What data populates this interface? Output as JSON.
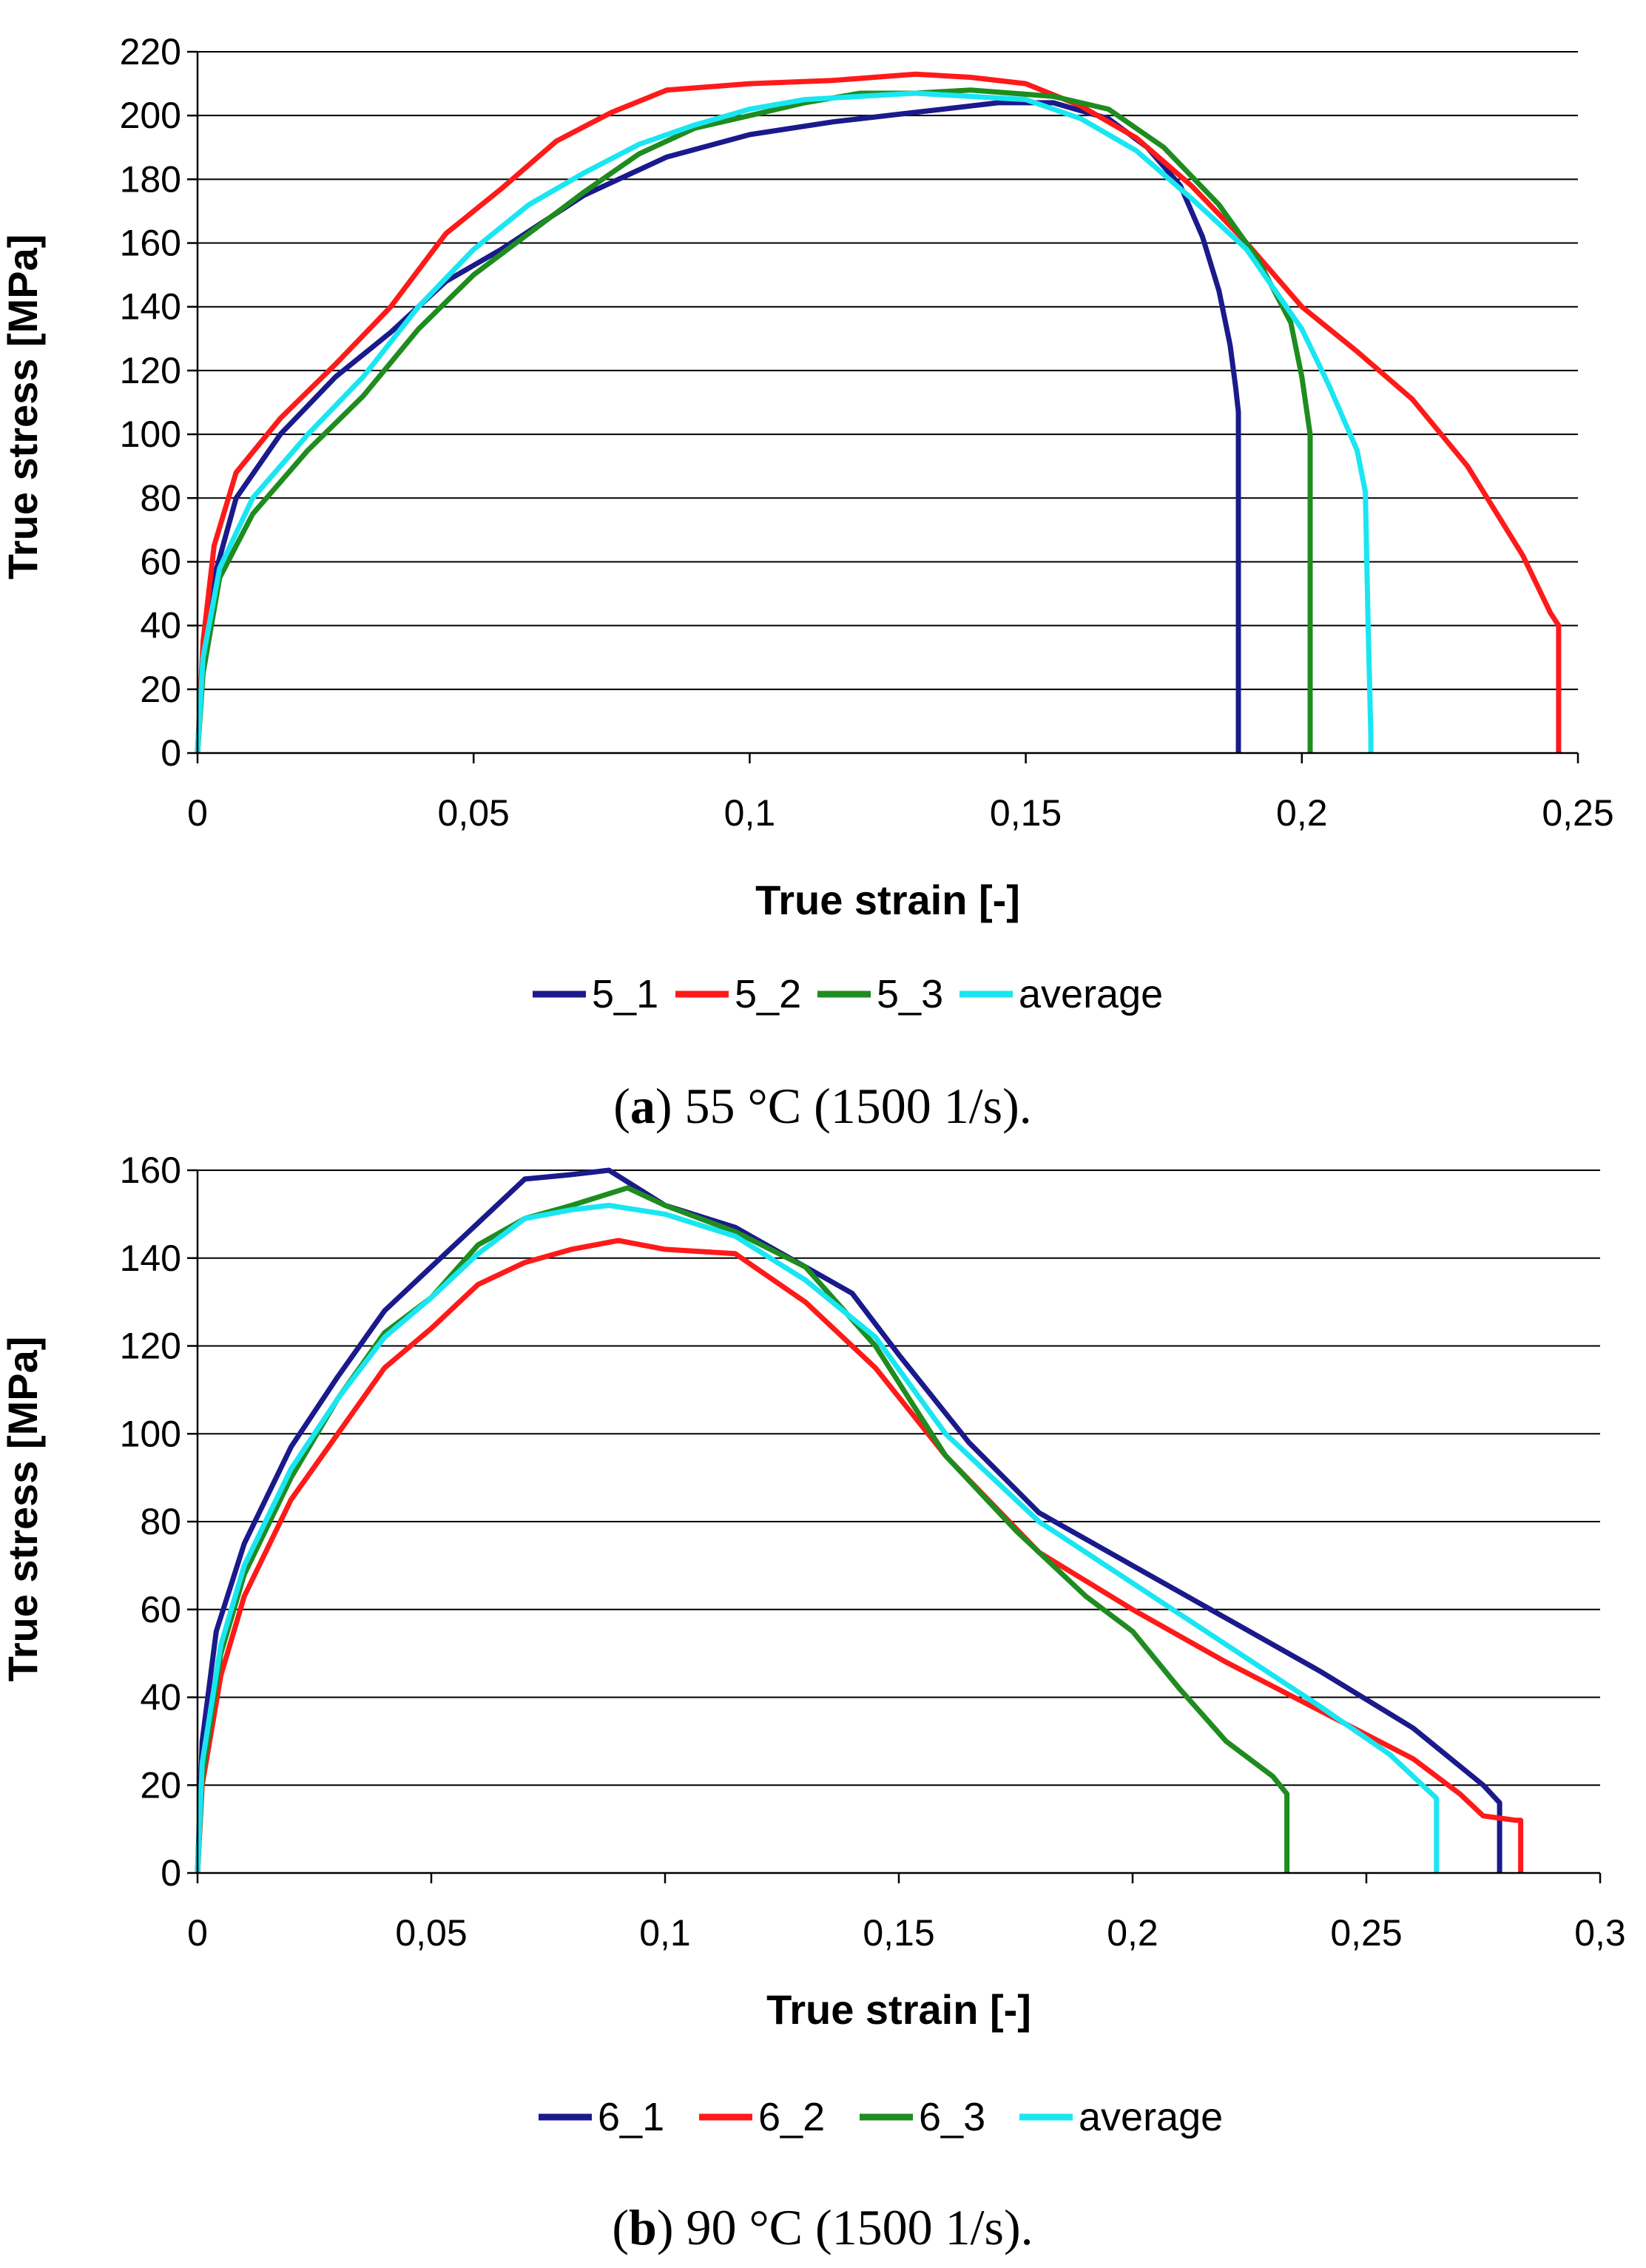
{
  "colors": {
    "navy": "#1a1a8c",
    "red": "#ff1a1a",
    "green": "#1e8c1e",
    "cyan": "#1ae6f2"
  },
  "panels": [
    {
      "id": "a",
      "caption_letter": "a",
      "caption_text": "55 °C (1500 1/s).",
      "legend": [
        "5_1",
        "5_2",
        "5_3",
        "average"
      ]
    },
    {
      "id": "b",
      "caption_letter": "b",
      "caption_text": "90 °C (1500 1/s).",
      "legend": [
        "6_1",
        "6_2",
        "6_3",
        "average"
      ]
    }
  ],
  "chart_data": [
    {
      "type": "line",
      "xlabel": "True strain [-]",
      "ylabel": "True stress [MPa]",
      "xlim": [
        0,
        0.25
      ],
      "ylim": [
        0,
        220
      ],
      "xticks": [
        0,
        0.05,
        0.1,
        0.15,
        0.2,
        0.25
      ],
      "xtick_labels": [
        "0",
        "0,05",
        "0,1",
        "0,15",
        "0,2",
        "0,25"
      ],
      "yticks": [
        0,
        20,
        40,
        60,
        80,
        100,
        120,
        140,
        160,
        180,
        200,
        220
      ],
      "grid": "horizontal",
      "legend_position": "bottom",
      "series": [
        {
          "name": "5_1",
          "color": "navy",
          "points": [
            [
              0,
              0
            ],
            [
              0.001,
              30
            ],
            [
              0.003,
              55
            ],
            [
              0.007,
              80
            ],
            [
              0.015,
              100
            ],
            [
              0.025,
              118
            ],
            [
              0.035,
              132
            ],
            [
              0.045,
              148
            ],
            [
              0.055,
              158
            ],
            [
              0.07,
              175
            ],
            [
              0.085,
              187
            ],
            [
              0.1,
              194
            ],
            [
              0.115,
              198
            ],
            [
              0.13,
              201
            ],
            [
              0.145,
              204
            ],
            [
              0.155,
              204
            ],
            [
              0.165,
              199
            ],
            [
              0.172,
              190
            ],
            [
              0.178,
              178
            ],
            [
              0.182,
              162
            ],
            [
              0.185,
              145
            ],
            [
              0.187,
              128
            ],
            [
              0.188,
              115
            ],
            [
              0.1885,
              107
            ],
            [
              0.1885,
              0
            ]
          ]
        },
        {
          "name": "5_2",
          "color": "red",
          "points": [
            [
              0,
              0
            ],
            [
              0.001,
              35
            ],
            [
              0.003,
              65
            ],
            [
              0.007,
              88
            ],
            [
              0.015,
              105
            ],
            [
              0.025,
              122
            ],
            [
              0.035,
              140
            ],
            [
              0.045,
              163
            ],
            [
              0.055,
              177
            ],
            [
              0.065,
              192
            ],
            [
              0.075,
              201
            ],
            [
              0.085,
              208
            ],
            [
              0.1,
              210
            ],
            [
              0.115,
              211
            ],
            [
              0.13,
              213
            ],
            [
              0.14,
              212
            ],
            [
              0.15,
              210
            ],
            [
              0.16,
              203
            ],
            [
              0.17,
              193
            ],
            [
              0.18,
              178
            ],
            [
              0.19,
              160
            ],
            [
              0.2,
              140
            ],
            [
              0.21,
              126
            ],
            [
              0.22,
              111
            ],
            [
              0.23,
              90
            ],
            [
              0.24,
              62
            ],
            [
              0.245,
              44
            ],
            [
              0.2465,
              40
            ],
            [
              0.2465,
              0
            ]
          ]
        },
        {
          "name": "5_3",
          "color": "green",
          "points": [
            [
              0,
              0
            ],
            [
              0.001,
              25
            ],
            [
              0.004,
              55
            ],
            [
              0.01,
              75
            ],
            [
              0.02,
              95
            ],
            [
              0.03,
              112
            ],
            [
              0.04,
              133
            ],
            [
              0.05,
              150
            ],
            [
              0.06,
              163
            ],
            [
              0.07,
              176
            ],
            [
              0.08,
              188
            ],
            [
              0.09,
              196
            ],
            [
              0.1,
              200
            ],
            [
              0.11,
              204
            ],
            [
              0.12,
              207
            ],
            [
              0.13,
              207
            ],
            [
              0.14,
              208
            ],
            [
              0.155,
              206
            ],
            [
              0.165,
              202
            ],
            [
              0.175,
              190
            ],
            [
              0.185,
              172
            ],
            [
              0.192,
              155
            ],
            [
              0.198,
              135
            ],
            [
              0.2,
              118
            ],
            [
              0.2015,
              100
            ],
            [
              0.2015,
              0
            ]
          ]
        },
        {
          "name": "average",
          "color": "cyan",
          "points": [
            [
              0,
              0
            ],
            [
              0.001,
              30
            ],
            [
              0.004,
              58
            ],
            [
              0.01,
              80
            ],
            [
              0.02,
              100
            ],
            [
              0.03,
              118
            ],
            [
              0.04,
              140
            ],
            [
              0.05,
              158
            ],
            [
              0.06,
              172
            ],
            [
              0.07,
              182
            ],
            [
              0.08,
              191
            ],
            [
              0.09,
              197
            ],
            [
              0.1,
              202
            ],
            [
              0.11,
              205
            ],
            [
              0.12,
              206
            ],
            [
              0.13,
              207
            ],
            [
              0.14,
              206
            ],
            [
              0.15,
              205
            ],
            [
              0.16,
              199
            ],
            [
              0.17,
              189
            ],
            [
              0.18,
              174
            ],
            [
              0.19,
              158
            ],
            [
              0.2,
              133
            ],
            [
              0.205,
              115
            ],
            [
              0.21,
              95
            ],
            [
              0.2115,
              82
            ],
            [
              0.212,
              40
            ],
            [
              0.2125,
              5
            ],
            [
              0.2125,
              0
            ]
          ]
        }
      ]
    },
    {
      "type": "line",
      "xlabel": "True strain [-]",
      "ylabel": "True stress [MPa]",
      "xlim": [
        0,
        0.3
      ],
      "ylim": [
        0,
        160
      ],
      "xticks": [
        0,
        0.05,
        0.1,
        0.15,
        0.2,
        0.25,
        0.3
      ],
      "xtick_labels": [
        "0",
        "0,05",
        "0,1",
        "0,15",
        "0,2",
        "0,25",
        "0,3"
      ],
      "yticks": [
        0,
        20,
        40,
        60,
        80,
        100,
        120,
        140,
        160
      ],
      "grid": "horizontal",
      "legend_position": "bottom",
      "series": [
        {
          "name": "6_1",
          "color": "navy",
          "points": [
            [
              0,
              0
            ],
            [
              0.001,
              30
            ],
            [
              0.004,
              55
            ],
            [
              0.01,
              75
            ],
            [
              0.02,
              97
            ],
            [
              0.03,
              113
            ],
            [
              0.04,
              128
            ],
            [
              0.05,
              138
            ],
            [
              0.06,
              148
            ],
            [
              0.07,
              158
            ],
            [
              0.08,
              159
            ],
            [
              0.088,
              160
            ],
            [
              0.1,
              152
            ],
            [
              0.115,
              147
            ],
            [
              0.13,
              138
            ],
            [
              0.14,
              132
            ],
            [
              0.15,
              118
            ],
            [
              0.165,
              98
            ],
            [
              0.18,
              82
            ],
            [
              0.2,
              70
            ],
            [
              0.22,
              58
            ],
            [
              0.24,
              46
            ],
            [
              0.26,
              33
            ],
            [
              0.275,
              20
            ],
            [
              0.2785,
              16
            ],
            [
              0.2785,
              0
            ]
          ]
        },
        {
          "name": "6_2",
          "color": "red",
          "points": [
            [
              0,
              0
            ],
            [
              0.001,
              20
            ],
            [
              0.005,
              45
            ],
            [
              0.01,
              63
            ],
            [
              0.02,
              85
            ],
            [
              0.03,
              100
            ],
            [
              0.04,
              115
            ],
            [
              0.05,
              124
            ],
            [
              0.06,
              134
            ],
            [
              0.07,
              139
            ],
            [
              0.08,
              142
            ],
            [
              0.09,
              144
            ],
            [
              0.1,
              142
            ],
            [
              0.115,
              141
            ],
            [
              0.13,
              130
            ],
            [
              0.145,
              115
            ],
            [
              0.16,
              95
            ],
            [
              0.18,
              73
            ],
            [
              0.2,
              60
            ],
            [
              0.22,
              48
            ],
            [
              0.24,
              37
            ],
            [
              0.26,
              26
            ],
            [
              0.27,
              18
            ],
            [
              0.275,
              13
            ],
            [
              0.282,
              12
            ],
            [
              0.283,
              12
            ],
            [
              0.283,
              0
            ]
          ]
        },
        {
          "name": "6_3",
          "color": "green",
          "points": [
            [
              0,
              0
            ],
            [
              0.001,
              22
            ],
            [
              0.005,
              50
            ],
            [
              0.01,
              68
            ],
            [
              0.02,
              90
            ],
            [
              0.03,
              108
            ],
            [
              0.04,
              123
            ],
            [
              0.05,
              131
            ],
            [
              0.06,
              143
            ],
            [
              0.07,
              149
            ],
            [
              0.08,
              152
            ],
            [
              0.092,
              156
            ],
            [
              0.1,
              152
            ],
            [
              0.115,
              146
            ],
            [
              0.13,
              138
            ],
            [
              0.145,
              120
            ],
            [
              0.16,
              95
            ],
            [
              0.175,
              78
            ],
            [
              0.19,
              63
            ],
            [
              0.2,
              55
            ],
            [
              0.21,
              42
            ],
            [
              0.22,
              30
            ],
            [
              0.23,
              22
            ],
            [
              0.233,
              18
            ],
            [
              0.233,
              0
            ]
          ]
        },
        {
          "name": "average",
          "color": "cyan",
          "points": [
            [
              0,
              0
            ],
            [
              0.001,
              25
            ],
            [
              0.005,
              52
            ],
            [
              0.01,
              70
            ],
            [
              0.02,
              92
            ],
            [
              0.03,
              108
            ],
            [
              0.04,
              122
            ],
            [
              0.05,
              131
            ],
            [
              0.06,
              141
            ],
            [
              0.07,
              149
            ],
            [
              0.08,
              151
            ],
            [
              0.088,
              152
            ],
            [
              0.1,
              150
            ],
            [
              0.115,
              145
            ],
            [
              0.13,
              135
            ],
            [
              0.145,
              122
            ],
            [
              0.16,
              100
            ],
            [
              0.18,
              80
            ],
            [
              0.2,
              66
            ],
            [
              0.22,
              52
            ],
            [
              0.24,
              38
            ],
            [
              0.255,
              27
            ],
            [
              0.265,
              17
            ],
            [
              0.265,
              0
            ]
          ]
        }
      ]
    }
  ]
}
